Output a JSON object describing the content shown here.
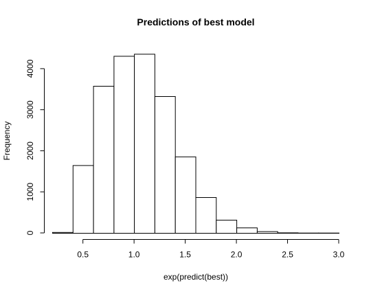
{
  "chart_data": {
    "type": "bar",
    "title": "Predictions of best model",
    "xlabel": "exp(predict(best))",
    "ylabel": "Frequency",
    "bin_edges": [
      0.2,
      0.4,
      0.6,
      0.8,
      1.0,
      1.2,
      1.4,
      1.6,
      1.8,
      2.0,
      2.2,
      2.4,
      2.6,
      2.8,
      3.0
    ],
    "values": [
      20,
      1650,
      3580,
      4310,
      4360,
      3330,
      1860,
      870,
      320,
      130,
      40,
      10,
      5,
      5
    ],
    "xlim": [
      0.2,
      3.0
    ],
    "ylim": [
      0,
      4400
    ],
    "x_ticks": [
      0.5,
      1.0,
      1.5,
      2.0,
      2.5,
      3.0
    ],
    "x_tick_labels": [
      "0.5",
      "1.0",
      "1.5",
      "2.0",
      "2.5",
      "3.0"
    ],
    "y_ticks": [
      0,
      1000,
      2000,
      3000,
      4000
    ],
    "y_tick_labels": [
      "0",
      "1000",
      "2000",
      "3000",
      "4000"
    ],
    "grid": false,
    "colors": {
      "bar_fill": "#ffffff",
      "bar_stroke": "#000000"
    }
  }
}
